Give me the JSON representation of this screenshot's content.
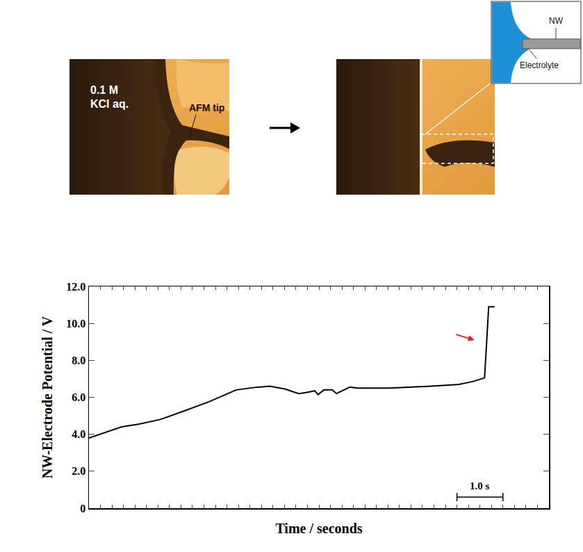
{
  "chart_data": {
    "type": "line",
    "x_label": "Time / seconds",
    "y_label": "NW-Electrode Potential / V",
    "x": [
      0,
      0.71,
      1.09,
      1.55,
      2.0,
      2.6,
      3.2,
      3.66,
      3.93,
      4.26,
      4.56,
      4.71,
      4.91,
      4.98,
      5.11,
      5.29,
      5.38,
      5.56,
      5.67,
      5.85,
      6.53,
      7.43,
      8.04,
      8.34,
      8.6,
      8.69,
      8.82
    ],
    "values": [
      3.8,
      4.4,
      4.55,
      4.8,
      5.2,
      5.75,
      6.4,
      6.55,
      6.6,
      6.45,
      6.2,
      6.25,
      6.35,
      6.15,
      6.4,
      6.4,
      6.2,
      6.4,
      6.55,
      6.5,
      6.5,
      6.6,
      6.7,
      6.85,
      7.05,
      10.9,
      10.9
    ],
    "color": "#000000",
    "xlim": [
      0,
      10.0
    ],
    "xticks": [
      0,
      0.25,
      0.5,
      0.75,
      1,
      1.25,
      1.5,
      1.75,
      2,
      2.25,
      2.5,
      2.75,
      3,
      3.25,
      3.5,
      3.75,
      4,
      4.25,
      4.5,
      4.75,
      5,
      5.25,
      5.5,
      5.75,
      6,
      6.25,
      6.5,
      6.75,
      7,
      7.25,
      7.5,
      7.75,
      8,
      8.25,
      8.5,
      8.75,
      9,
      9.25,
      9.5,
      9.75,
      10
    ],
    "ylim": [
      0,
      12.0
    ],
    "yticks": [
      0,
      {
        "value": 2,
        "label": "2.0"
      },
      {
        "value": 4,
        "label": "4.0"
      },
      {
        "value": 6,
        "label": "6.0"
      },
      {
        "value": 8,
        "label": "8.0"
      },
      {
        "value": 10,
        "label": "10.0"
      },
      {
        "value": 12,
        "label": "12.0"
      }
    ],
    "tick_labels": "y",
    "grid": false,
    "scale_bar": {
      "x": [
        8.0,
        9.0
      ],
      "y": 0.6,
      "label": "1.0 s"
    },
    "arrow": {
      "x": 8.38,
      "y": 9.1,
      "color": "#e0201c"
    }
  },
  "photos": {
    "before": {
      "labels": [
        "0.1 M",
        "KCl aq."
      ],
      "tip_label": "AFM tip"
    },
    "inset": {
      "wire_label": "NW",
      "liquid_label": "Electrolyte"
    }
  }
}
